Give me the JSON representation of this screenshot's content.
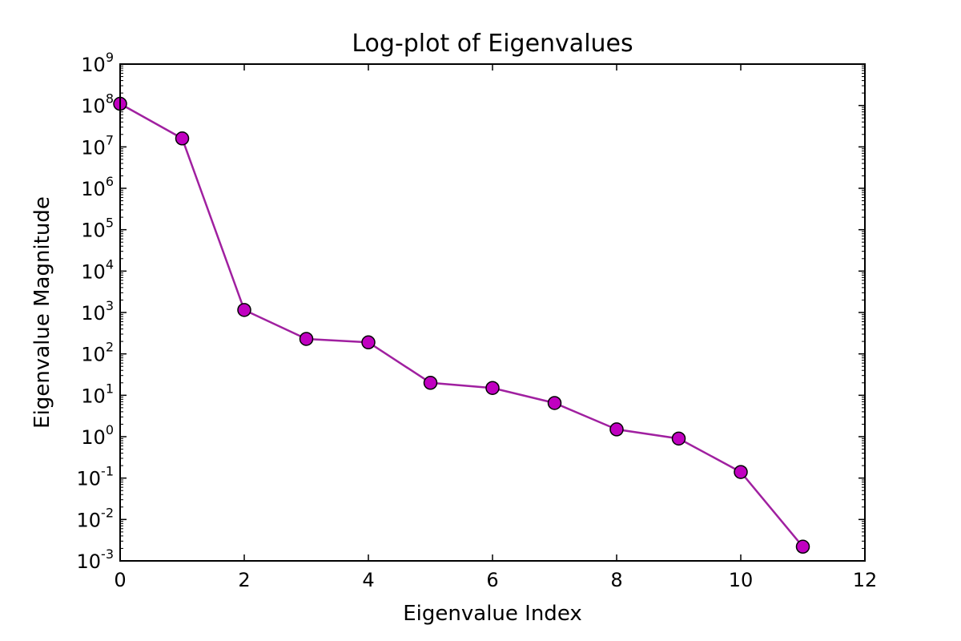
{
  "chart_data": {
    "type": "line",
    "title": "Log-plot of Eigenvalues",
    "xlabel": "Eigenvalue Index",
    "ylabel": "Eigenvalue Magnitude",
    "xlim": [
      0,
      12
    ],
    "ylim": [
      0.001,
      1000000000
    ],
    "yscale": "log",
    "grid": false,
    "x_ticks": [
      0,
      2,
      4,
      6,
      8,
      10,
      12
    ],
    "y_ticks": [
      {
        "base": "10",
        "exp": "-3",
        "value": 0.001
      },
      {
        "base": "10",
        "exp": "-2",
        "value": 0.01
      },
      {
        "base": "10",
        "exp": "-1",
        "value": 0.1
      },
      {
        "base": "10",
        "exp": "0",
        "value": 1
      },
      {
        "base": "10",
        "exp": "1",
        "value": 10
      },
      {
        "base": "10",
        "exp": "2",
        "value": 100
      },
      {
        "base": "10",
        "exp": "3",
        "value": 1000
      },
      {
        "base": "10",
        "exp": "4",
        "value": 10000
      },
      {
        "base": "10",
        "exp": "5",
        "value": 100000
      },
      {
        "base": "10",
        "exp": "6",
        "value": 1000000
      },
      {
        "base": "10",
        "exp": "7",
        "value": 10000000
      },
      {
        "base": "10",
        "exp": "8",
        "value": 100000000
      },
      {
        "base": "10",
        "exp": "9",
        "value": 1000000000
      }
    ],
    "series": [
      {
        "color": "#a020a0",
        "marker_color": "#c000c0",
        "marker": "circle",
        "x": [
          0,
          1,
          2,
          3,
          4,
          5,
          6,
          7,
          8,
          9,
          10,
          11
        ],
        "y": [
          110000000,
          16000000,
          1150,
          230,
          190,
          20,
          15,
          6.5,
          1.5,
          0.9,
          0.14,
          0.0022
        ]
      }
    ]
  }
}
